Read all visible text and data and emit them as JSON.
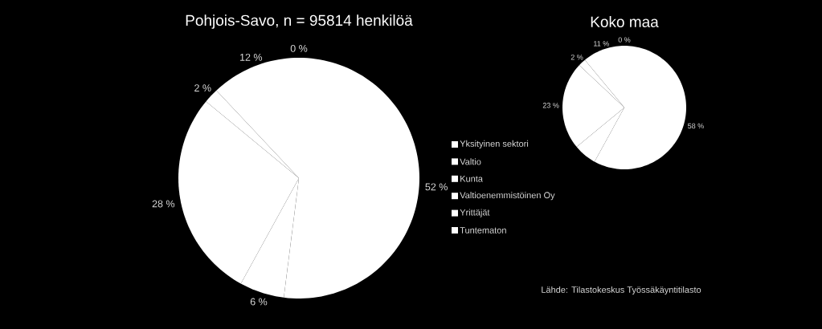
{
  "chart_data": [
    {
      "type": "pie",
      "title": "Pohjois-Savo, n = 95814 henkilöä",
      "categories": [
        "Yksityinen sektori",
        "Valtio",
        "Kunta",
        "Valtioenemmistöinen Oy",
        "Yrittäjät",
        "Tuntematon"
      ],
      "values": [
        52,
        6,
        28,
        2,
        12,
        0
      ],
      "value_labels": [
        "52 %",
        "6 %",
        "28 %",
        "2 %",
        "12 %",
        "0 %"
      ],
      "colors": [
        "#ffffff",
        "#ffffff",
        "#ffffff",
        "#ffffff",
        "#ffffff",
        "#ffffff"
      ],
      "legend": "right"
    },
    {
      "type": "pie",
      "title": "Koko maa",
      "categories": [
        null,
        null,
        null,
        null,
        null,
        null
      ],
      "values": [
        58,
        6,
        23,
        2,
        11,
        0
      ],
      "value_labels": [
        "58 %",
        null,
        "23 %",
        "2 %",
        "11 %",
        "0 %"
      ],
      "colors": [
        "#ffffff",
        "#ffffff",
        "#ffffff",
        "#ffffff",
        "#ffffff",
        "#ffffff"
      ],
      "annotations": [
        "Lähde: Tilastokeskus Työssäkäyntitilasto"
      ]
    }
  ]
}
